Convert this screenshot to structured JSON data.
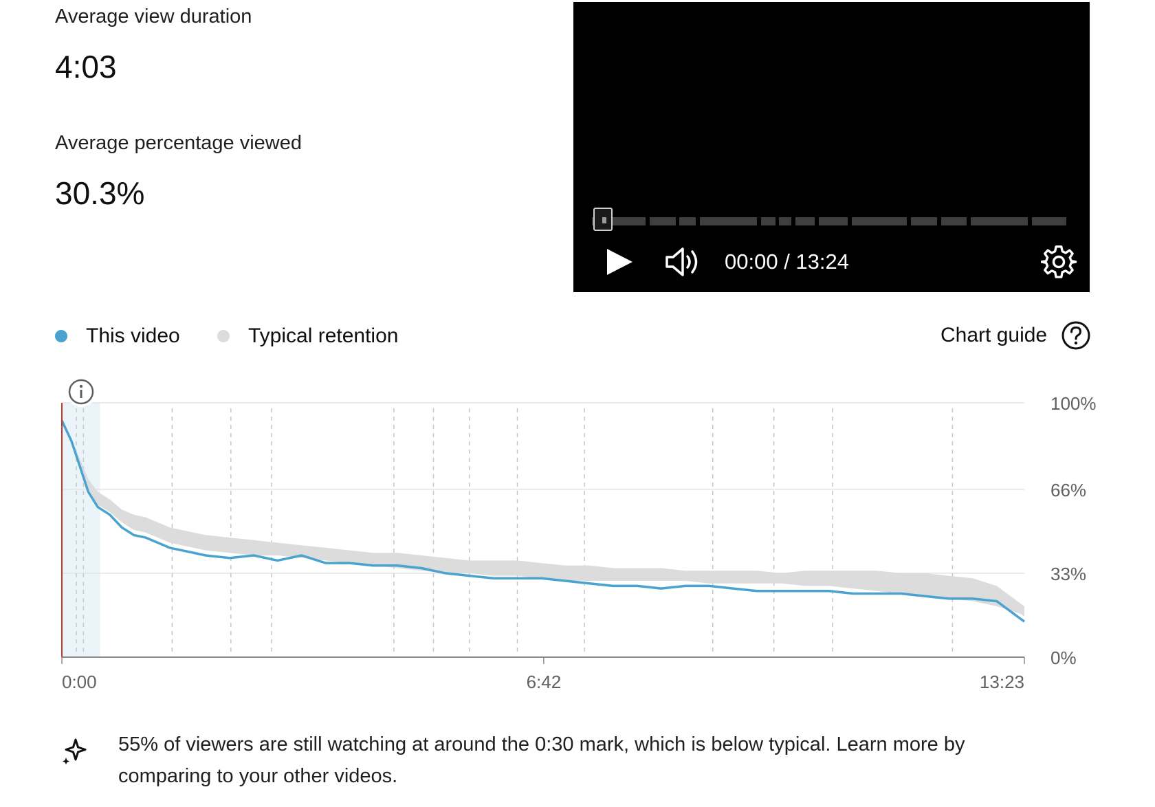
{
  "metrics": {
    "avg_view_duration_label": "Average view duration",
    "avg_view_duration_value": "4:03",
    "avg_percentage_label": "Average percentage viewed",
    "avg_percentage_value": "30.3%"
  },
  "player": {
    "time_display": "00:00 / 13:24",
    "play_icon": "play-icon",
    "volume_icon": "volume-icon",
    "settings_icon": "gear-icon"
  },
  "legend": {
    "this_video": "This video",
    "typical": "Typical retention",
    "chart_guide": "Chart guide",
    "this_video_color": "#4aa3cf",
    "typical_color": "#dcdcdc"
  },
  "chart_data": {
    "type": "area",
    "ylim": [
      0,
      100
    ],
    "y_ticks": [
      "100%",
      "66%",
      "33%",
      "0%"
    ],
    "y_tick_values": [
      100,
      66,
      33,
      0
    ],
    "x_ticks": [
      "0:00",
      "6:42",
      "13:23"
    ],
    "x_tick_values": [
      0,
      402,
      803
    ],
    "xlim": [
      0,
      803
    ],
    "this_video": {
      "x": [
        0,
        8,
        15,
        22,
        30,
        40,
        50,
        60,
        70,
        80,
        90,
        100,
        120,
        140,
        160,
        180,
        200,
        220,
        240,
        260,
        280,
        300,
        320,
        340,
        360,
        380,
        400,
        420,
        440,
        460,
        480,
        500,
        520,
        540,
        560,
        580,
        600,
        620,
        640,
        660,
        680,
        700,
        720,
        740,
        760,
        780,
        800,
        803
      ],
      "y": [
        93,
        85,
        75,
        65,
        59,
        56,
        51,
        48,
        47,
        45,
        43,
        42,
        40,
        39,
        40,
        38,
        40,
        37,
        37,
        36,
        36,
        35,
        33,
        32,
        31,
        31,
        31,
        30,
        29,
        28,
        28,
        27,
        28,
        28,
        27,
        26,
        26,
        26,
        26,
        25,
        25,
        25,
        24,
        23,
        23,
        22,
        15,
        14
      ]
    },
    "typical_band": {
      "x": [
        0,
        8,
        15,
        22,
        30,
        40,
        50,
        60,
        70,
        80,
        90,
        100,
        120,
        140,
        160,
        180,
        200,
        220,
        240,
        260,
        280,
        300,
        320,
        340,
        360,
        380,
        400,
        420,
        440,
        460,
        480,
        500,
        520,
        540,
        560,
        580,
        600,
        620,
        640,
        660,
        680,
        700,
        720,
        740,
        760,
        780,
        800,
        803
      ],
      "upper": [
        93,
        86,
        78,
        70,
        65,
        62,
        58,
        56,
        55,
        53,
        51,
        50,
        48,
        47,
        46,
        45,
        44,
        43,
        42,
        41,
        41,
        40,
        39,
        38,
        38,
        38,
        37,
        36,
        36,
        35,
        35,
        35,
        34,
        34,
        34,
        34,
        33,
        34,
        34,
        34,
        34,
        33,
        33,
        32,
        31,
        28,
        21,
        20
      ],
      "lower": [
        93,
        85,
        76,
        66,
        60,
        57,
        53,
        50,
        49,
        47,
        45,
        44,
        42,
        41,
        40,
        40,
        39,
        38,
        37,
        36,
        35,
        34,
        33,
        33,
        32,
        32,
        31,
        30,
        30,
        30,
        30,
        30,
        30,
        29,
        29,
        29,
        29,
        28,
        28,
        27,
        26,
        25,
        24,
        23,
        22,
        20,
        17,
        16
      ]
    },
    "markers_x": [
      12,
      18,
      92,
      141,
      175,
      277,
      310,
      340,
      380,
      436,
      543,
      594,
      643,
      743
    ]
  },
  "insight": {
    "icon": "sparkle-icon",
    "text": "55% of viewers are still watching at around the 0:30 mark, which is below typical. Learn more by comparing to your other videos."
  }
}
